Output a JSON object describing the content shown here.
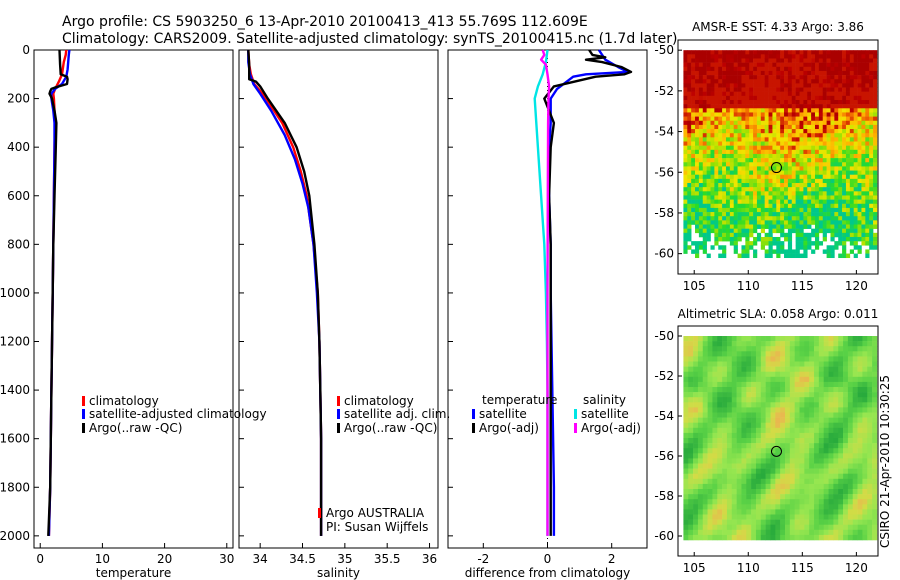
{
  "figure": {
    "title_line1": "Argo profile: CS 5903250_6 13-Apr-2010 20100413_413 55.769S 112.609E",
    "title_line2": "Climatology: CARS2009. Satellite-adjusted climatology: synTS_20100415.nc (1.7d later)",
    "side_label": "CSIRO 21-Apr-2010 10:30:25"
  },
  "colors": {
    "climatology": "#ff0000",
    "satellite": "#0000ff",
    "argo": "#000000",
    "sal_satellite": "#00e5e5",
    "sal_argo": "#ff00ff"
  },
  "chart_data": [
    {
      "id": "temperature",
      "type": "line",
      "xlabel": "temperature",
      "ylabel": "",
      "xlim": [
        -1,
        31
      ],
      "ylim": [
        2050,
        0
      ],
      "xticks": [
        0,
        10,
        20,
        30
      ],
      "yticks": [
        0,
        200,
        400,
        600,
        800,
        1000,
        1200,
        1400,
        1600,
        1800,
        2000
      ],
      "legend": [
        "climatology",
        "satellite-adjusted climatology",
        "Argo(..raw -QC)"
      ],
      "legend_position": "lower-middle",
      "series": [
        {
          "name": "climatology",
          "color": "#ff0000",
          "y": [
            0,
            20,
            50,
            100,
            130,
            160,
            180,
            200,
            300,
            400,
            600,
            800,
            1000,
            1400,
            1800,
            2000
          ],
          "x": [
            4.2,
            4.1,
            3.8,
            3.5,
            3.0,
            2.4,
            2.1,
            2.2,
            2.4,
            2.3,
            2.2,
            2.1,
            2.0,
            1.8,
            1.6,
            1.4
          ]
        },
        {
          "name": "satellite",
          "color": "#0000ff",
          "y": [
            0,
            20,
            50,
            80,
            110,
            140,
            160,
            180,
            200,
            250,
            300,
            400,
            600,
            800,
            1000,
            1400,
            1800,
            2000
          ],
          "x": [
            4.7,
            4.6,
            4.5,
            4.4,
            4.2,
            3.5,
            2.4,
            1.8,
            1.8,
            2.1,
            2.3,
            2.3,
            2.2,
            2.1,
            2.0,
            1.8,
            1.6,
            1.4
          ]
        },
        {
          "name": "Argo",
          "color": "#000000",
          "y": [
            0,
            60,
            100,
            110,
            120,
            140,
            150,
            155,
            160,
            170,
            180,
            200,
            250,
            300,
            400,
            600,
            800,
            1000,
            1400,
            1800,
            2000
          ],
          "x": [
            3.1,
            3.2,
            3.3,
            4.3,
            4.4,
            4.3,
            3.0,
            2.3,
            1.8,
            1.6,
            1.5,
            1.9,
            2.3,
            2.6,
            2.5,
            2.3,
            2.1,
            2.0,
            1.8,
            1.6,
            1.3
          ]
        }
      ]
    },
    {
      "id": "salinity",
      "type": "line",
      "xlabel": "salinity",
      "ylabel": "",
      "xlim": [
        33.75,
        36.1
      ],
      "ylim": [
        2050,
        0
      ],
      "xticks": [
        34,
        34.5,
        35,
        35.5,
        36
      ],
      "xtick_labels": [
        "34",
        "34.5",
        "35",
        "35.5",
        "36"
      ],
      "legend": [
        "climatology",
        "satellite adj. clim.",
        "Argo(..raw -QC)"
      ],
      "legend_position": "lower-middle",
      "annotation": [
        "Argo AUSTRALIA",
        "PI: Susan Wijffels"
      ],
      "series": [
        {
          "name": "climatology",
          "color": "#ff0000",
          "y": [
            0,
            60,
            100,
            140,
            160,
            200,
            300,
            400,
            500,
            600,
            800,
            1000,
            1200,
            1400,
            1600,
            1800,
            2000
          ],
          "x": [
            33.86,
            33.87,
            33.89,
            33.93,
            33.98,
            34.07,
            34.26,
            34.39,
            34.48,
            34.55,
            34.63,
            34.68,
            34.7,
            34.71,
            34.72,
            34.72,
            34.72
          ]
        },
        {
          "name": "satellite",
          "color": "#0000ff",
          "y": [
            0,
            50,
            100,
            140,
            180,
            250,
            350,
            450,
            550,
            650,
            800,
            1000,
            1200,
            1400,
            1600,
            1800,
            2000
          ],
          "x": [
            33.86,
            33.86,
            33.88,
            33.92,
            34.0,
            34.13,
            34.29,
            34.41,
            34.5,
            34.57,
            34.63,
            34.67,
            34.7,
            34.71,
            34.72,
            34.72,
            34.72
          ]
        },
        {
          "name": "Argo",
          "color": "#000000",
          "y": [
            0,
            60,
            120,
            130,
            150,
            200,
            300,
            400,
            500,
            600,
            800,
            1000,
            1200,
            1400,
            1600,
            1800,
            2000
          ],
          "x": [
            33.86,
            33.87,
            33.87,
            33.95,
            34.0,
            34.09,
            34.29,
            34.43,
            34.52,
            34.58,
            34.64,
            34.68,
            34.7,
            34.71,
            34.72,
            34.72,
            34.72
          ]
        }
      ]
    },
    {
      "id": "difference",
      "type": "line",
      "xlabel": "difference from climatology",
      "ylabel": "",
      "xlim": [
        -3.1,
        3.1
      ],
      "ylim": [
        2050,
        0
      ],
      "xticks": [
        -2,
        0,
        2
      ],
      "legend_titles": [
        "temperature",
        "salinity"
      ],
      "legend": [
        "satellite",
        "Argo(-adj)",
        "satellite",
        "Argo(-adj)"
      ],
      "legend_position": "lower-middle",
      "series": [
        {
          "name": "temperature satellite",
          "color": "#0000ff",
          "y": [
            0,
            40,
            70,
            90,
            100,
            110,
            130,
            160,
            200,
            300,
            400,
            600,
            800,
            1000,
            1400,
            1800,
            2000
          ],
          "x": [
            1.6,
            1.8,
            2.2,
            2.5,
            1.2,
            0.8,
            0.6,
            0.3,
            0.1,
            0.1,
            0.05,
            0.05,
            0.1,
            0.1,
            0.15,
            0.2,
            0.2
          ]
        },
        {
          "name": "temperature Argo(-adj)",
          "color": "#000000",
          "y": [
            0,
            20,
            30,
            40,
            50,
            70,
            90,
            100,
            110,
            150,
            200,
            300,
            400,
            600,
            800,
            1000,
            1400,
            1800,
            2000
          ],
          "x": [
            1.3,
            1.4,
            1.8,
            1.2,
            1.7,
            2.3,
            2.6,
            2.4,
            1.5,
            0.2,
            -0.1,
            0.2,
            0.1,
            0.05,
            0.1,
            0.1,
            0.1,
            0.1,
            0.1
          ]
        },
        {
          "name": "salinity satellite",
          "color": "#00e5e5",
          "y": [
            0,
            50,
            100,
            150,
            200,
            300,
            400,
            600,
            800,
            1000,
            1200,
            1400,
            1600,
            1800,
            2000
          ],
          "x": [
            0.0,
            -0.05,
            -0.15,
            -0.3,
            -0.4,
            -0.35,
            -0.3,
            -0.2,
            -0.1,
            -0.05,
            -0.02,
            0.0,
            0.0,
            0.0,
            0.0
          ]
        },
        {
          "name": "salinity Argo(-adj)",
          "color": "#ff00ff",
          "y": [
            0,
            20,
            40,
            60,
            100,
            150,
            200,
            300,
            600,
            1000,
            1400,
            2000
          ],
          "x": [
            -0.15,
            -0.1,
            -0.2,
            -0.05,
            0.0,
            0.05,
            0.03,
            0.02,
            0.01,
            0.0,
            0.0,
            0.0
          ]
        }
      ]
    },
    {
      "id": "sst_map",
      "type": "heatmap",
      "title": "AMSR-E SST: 4.33 Argo: 3.86",
      "xlim": [
        103.5,
        122
      ],
      "ylim": [
        -61,
        -49.5
      ],
      "xticks": [
        105,
        110,
        115,
        120
      ],
      "yticks": [
        -50,
        -52,
        -54,
        -56,
        -58,
        -60
      ],
      "marker": {
        "lon": 112.609,
        "lat": -55.769
      }
    },
    {
      "id": "sla_map",
      "type": "heatmap",
      "title": "Altimetric SLA: 0.058 Argo: 0.011",
      "xlim": [
        103.5,
        122
      ],
      "ylim": [
        -61,
        -49.5
      ],
      "xticks": [
        105,
        110,
        115,
        120
      ],
      "yticks": [
        -50,
        -52,
        -54,
        -56,
        -58,
        -60
      ],
      "marker": {
        "lon": 112.609,
        "lat": -55.769
      }
    }
  ]
}
